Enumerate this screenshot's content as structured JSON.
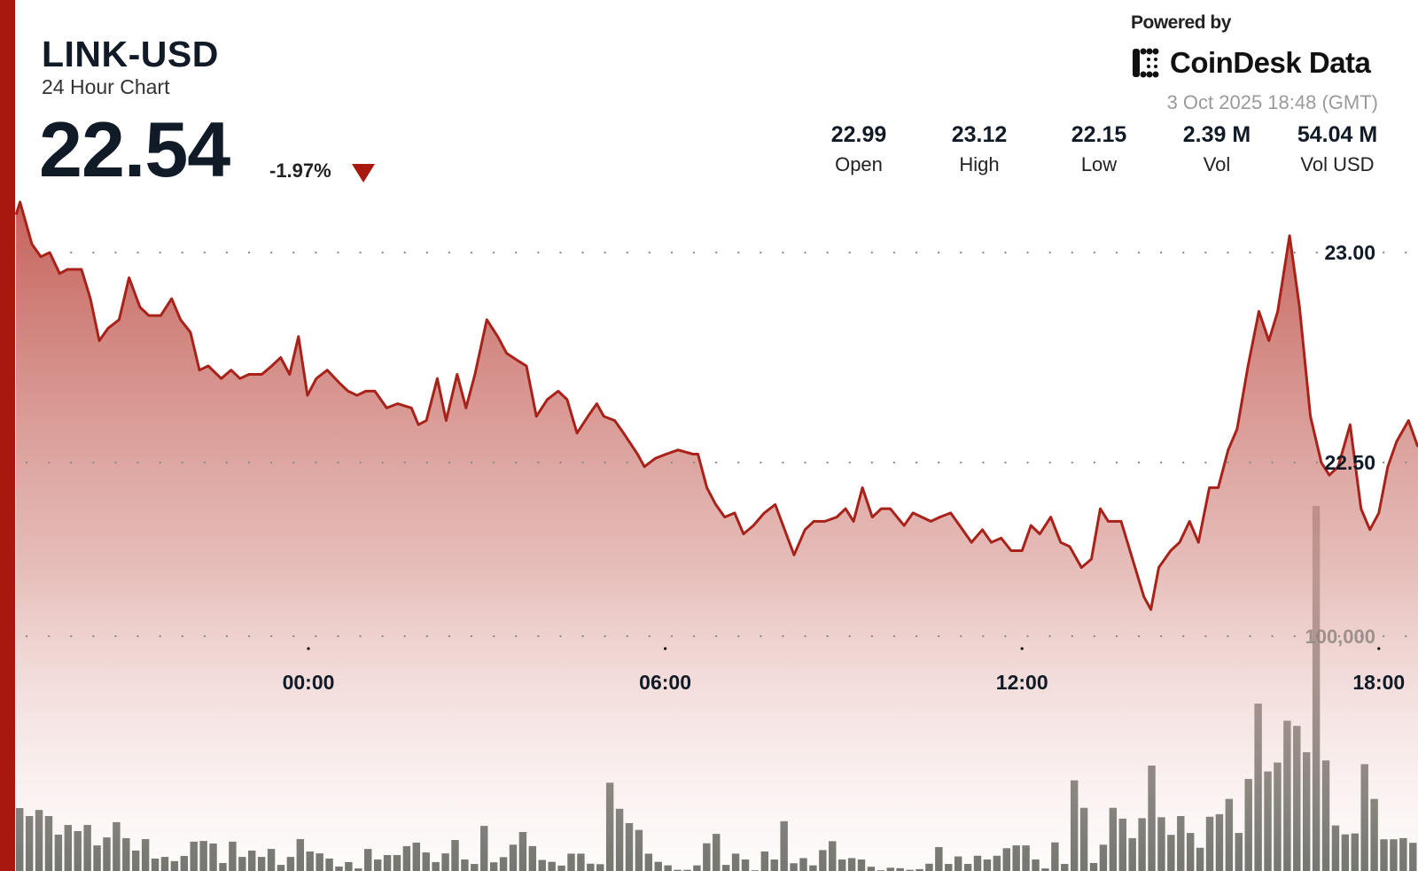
{
  "header": {
    "symbol": "LINK-USD",
    "subtitle": "24 Hour Chart",
    "price": "22.54",
    "change": "-1.97%",
    "change_direction": "down",
    "powered_by": "Powered by",
    "brand": "CoinDesk Data",
    "timestamp": "3 Oct 2025 18:48 (GMT)"
  },
  "stats": [
    {
      "value": "22.99",
      "label": "Open"
    },
    {
      "value": "23.12",
      "label": "High"
    },
    {
      "value": "22.15",
      "label": "Low"
    },
    {
      "value": "2.39 M",
      "label": "Vol"
    },
    {
      "value": "54.04 M",
      "label": "Vol USD"
    }
  ],
  "colors": {
    "accent": "#a8180f",
    "line": "#a8221a",
    "area_top": "#c25a52",
    "volume_bar": "#5e635c"
  },
  "chart_data": {
    "type": "area",
    "x_ticks": [
      "00:00",
      "06:00",
      "12:00",
      "18:00"
    ],
    "y_ticks": [
      {
        "value": 23.0,
        "label": "23.00"
      },
      {
        "value": 22.5,
        "label": "22.50"
      }
    ],
    "volume_ticks": [
      {
        "value": 100000,
        "label": "100,000"
      }
    ],
    "grid": "dotted horizontal",
    "price_series": [
      [
        "19:05",
        23.09
      ],
      [
        "19:09",
        23.12
      ],
      [
        "19:21",
        23.02
      ],
      [
        "19:30",
        22.99
      ],
      [
        "19:39",
        23.0
      ],
      [
        "19:49",
        22.95
      ],
      [
        "19:57",
        22.96
      ],
      [
        "20:11",
        22.96
      ],
      [
        "20:20",
        22.89
      ],
      [
        "20:29",
        22.79
      ],
      [
        "20:38",
        22.82
      ],
      [
        "20:49",
        22.84
      ],
      [
        "20:59",
        22.94
      ],
      [
        "21:10",
        22.87
      ],
      [
        "21:19",
        22.85
      ],
      [
        "21:31",
        22.85
      ],
      [
        "21:42",
        22.89
      ],
      [
        "21:51",
        22.84
      ],
      [
        "22:01",
        22.81
      ],
      [
        "22:10",
        22.72
      ],
      [
        "22:19",
        22.73
      ],
      [
        "22:32",
        22.7
      ],
      [
        "22:42",
        22.72
      ],
      [
        "22:51",
        22.7
      ],
      [
        "23:00",
        22.71
      ],
      [
        "23:13",
        22.71
      ],
      [
        "23:23",
        22.73
      ],
      [
        "23:32",
        22.75
      ],
      [
        "23:41",
        22.71
      ],
      [
        "23:50",
        22.8
      ],
      [
        "23:59",
        22.66
      ],
      [
        "00:08",
        22.7
      ],
      [
        "00:19",
        22.72
      ],
      [
        "00:31",
        22.69
      ],
      [
        "00:40",
        22.67
      ],
      [
        "00:49",
        22.66
      ],
      [
        "00:58",
        22.67
      ],
      [
        "01:07",
        22.67
      ],
      [
        "01:19",
        22.63
      ],
      [
        "01:30",
        22.64
      ],
      [
        "01:44",
        22.63
      ],
      [
        "01:51",
        22.59
      ],
      [
        "01:59",
        22.6
      ],
      [
        "02:10",
        22.7
      ],
      [
        "02:19",
        22.6
      ],
      [
        "02:30",
        22.71
      ],
      [
        "02:39",
        22.63
      ],
      [
        "02:48",
        22.71
      ],
      [
        "03:00",
        22.84
      ],
      [
        "03:11",
        22.8
      ],
      [
        "03:20",
        22.76
      ],
      [
        "03:33",
        22.74
      ],
      [
        "03:40",
        22.73
      ],
      [
        "03:50",
        22.61
      ],
      [
        "04:01",
        22.65
      ],
      [
        "04:12",
        22.67
      ],
      [
        "04:21",
        22.65
      ],
      [
        "04:31",
        22.57
      ],
      [
        "04:42",
        22.61
      ],
      [
        "04:51",
        22.64
      ],
      [
        "04:58",
        22.61
      ],
      [
        "05:09",
        22.6
      ],
      [
        "05:18",
        22.57
      ],
      [
        "05:32",
        22.52
      ],
      [
        "05:39",
        22.49
      ],
      [
        "05:50",
        22.51
      ],
      [
        "06:01",
        22.52
      ],
      [
        "06:13",
        22.53
      ],
      [
        "06:28",
        22.52
      ],
      [
        "06:33",
        22.52
      ],
      [
        "06:42",
        22.44
      ],
      [
        "06:51",
        22.4
      ],
      [
        "07:00",
        22.37
      ],
      [
        "07:10",
        22.38
      ],
      [
        "07:19",
        22.33
      ],
      [
        "07:29",
        22.35
      ],
      [
        "07:40",
        22.38
      ],
      [
        "07:51",
        22.4
      ],
      [
        "08:10",
        22.28
      ],
      [
        "08:21",
        22.34
      ],
      [
        "08:30",
        22.36
      ],
      [
        "08:41",
        22.36
      ],
      [
        "08:53",
        22.37
      ],
      [
        "09:02",
        22.39
      ],
      [
        "09:10",
        22.36
      ],
      [
        "09:19",
        22.44
      ],
      [
        "09:29",
        22.37
      ],
      [
        "09:38",
        22.39
      ],
      [
        "09:47",
        22.39
      ],
      [
        "10:01",
        22.35
      ],
      [
        "10:10",
        22.38
      ],
      [
        "10:28",
        22.36
      ],
      [
        "10:37",
        22.37
      ],
      [
        "10:48",
        22.38
      ],
      [
        "11:00",
        22.34
      ],
      [
        "11:09",
        22.31
      ],
      [
        "11:20",
        22.34
      ],
      [
        "11:29",
        22.31
      ],
      [
        "11:39",
        22.32
      ],
      [
        "11:49",
        22.29
      ],
      [
        "12:00",
        22.29
      ],
      [
        "12:09",
        22.35
      ],
      [
        "12:18",
        22.33
      ],
      [
        "12:29",
        22.37
      ],
      [
        "12:39",
        22.31
      ],
      [
        "12:48",
        22.3
      ],
      [
        "13:00",
        22.25
      ],
      [
        "13:10",
        22.27
      ],
      [
        "13:19",
        22.39
      ],
      [
        "13:27",
        22.36
      ],
      [
        "13:40",
        22.36
      ],
      [
        "14:03",
        22.18
      ],
      [
        "14:10",
        22.15
      ],
      [
        "14:18",
        22.25
      ],
      [
        "14:30",
        22.29
      ],
      [
        "14:39",
        22.31
      ],
      [
        "14:49",
        22.36
      ],
      [
        "14:58",
        22.31
      ],
      [
        "15:09",
        22.44
      ],
      [
        "15:18",
        22.44
      ],
      [
        "15:28",
        22.53
      ],
      [
        "15:37",
        22.58
      ],
      [
        "15:48",
        22.73
      ],
      [
        "15:59",
        22.86
      ],
      [
        "16:09",
        22.79
      ],
      [
        "16:18",
        22.86
      ],
      [
        "16:30",
        23.04
      ],
      [
        "16:40",
        22.87
      ],
      [
        "16:51",
        22.61
      ],
      [
        "17:02",
        22.5
      ],
      [
        "17:10",
        22.47
      ],
      [
        "17:19",
        22.49
      ],
      [
        "17:31",
        22.59
      ],
      [
        "17:42",
        22.39
      ],
      [
        "17:51",
        22.34
      ],
      [
        "18:00",
        22.38
      ],
      [
        "18:09",
        22.49
      ],
      [
        "18:18",
        22.55
      ],
      [
        "18:30",
        22.6
      ],
      [
        "18:39",
        22.54
      ]
    ],
    "volume_series": [
      26800,
      23400,
      26000,
      23400,
      15500,
      19600,
      17000,
      19600,
      10900,
      14300,
      20800,
      14000,
      8700,
      13600,
      5300,
      6000,
      4200,
      6400,
      12500,
      12800,
      11700,
      3400,
      12500,
      6000,
      8700,
      6000,
      9400,
      2600,
      6000,
      13600,
      8300,
      7500,
      5300,
      1900,
      3800,
      1100,
      9400,
      4900,
      6800,
      6800,
      10600,
      12100,
      7900,
      3800,
      7500,
      13200,
      4900,
      3000,
      19200,
      3700,
      5900,
      11200,
      16600,
      10600,
      4700,
      3900,
      2300,
      7400,
      7400,
      3100,
      2900,
      37600,
      26500,
      20400,
      17500,
      7400,
      3900,
      2400,
      500,
      500,
      2400,
      11800,
      15800,
      2600,
      7400,
      4900,
      300,
      8300,
      4900,
      21200,
      3300,
      5500,
      2400,
      8900,
      12700,
      4900,
      5500,
      4900,
      1800,
      300,
      1400,
      1200,
      500,
      800,
      3100,
      10200,
      3000,
      6200,
      3000,
      6500,
      4900,
      6500,
      9700,
      10900,
      10900,
      4900,
      1100,
      12200,
      3000,
      38600,
      26900,
      3400,
      11200,
      26900,
      22300,
      14000,
      22500,
      44900,
      22900,
      15400,
      23400,
      16200,
      9900,
      23100,
      24200,
      30700,
      16200,
      39200,
      71300,
      42400,
      46200,
      64000,
      61800,
      50600,
      155500,
      47100,
      19400,
      15600,
      16000,
      45500,
      30700,
      13500,
      13500,
      14000,
      12000
    ]
  }
}
